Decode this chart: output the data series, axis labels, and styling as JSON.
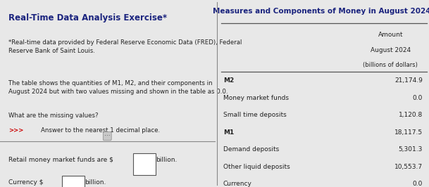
{
  "left_title": "Real-Time Data Analysis Exercise*",
  "left_subtitle": "*Real-time data provided by Federal Reserve Economic Data (FRED), Federal\nReserve Bank of Saint Louis.",
  "left_body": "The table shows the quantities of M1, M2, and their components in\nAugust 2024 but with two values missing and shown in the table as 0.0.",
  "left_question": "What are the missing values?",
  "left_arrow": ">>>",
  "left_answer_hint": "Answer to the nearest 1 decimal place.",
  "left_answer1": "Retail money market funds are $",
  "left_answer2": "billion.",
  "left_answer3": "Currency $",
  "left_answer4": "billion.",
  "right_title": "Measures and Components of Money in August 2024",
  "col_header1": "Amount",
  "col_header2": "August 2024",
  "col_header3": "(billions of dollars)",
  "rows": [
    {
      "label": "M2",
      "value": "21,174.9",
      "bold": true
    },
    {
      "label": "Money market funds",
      "value": "0.0",
      "bold": false
    },
    {
      "label": "Small time deposits",
      "value": "1,120.8",
      "bold": false
    },
    {
      "label": "M1",
      "value": "18,117.5",
      "bold": true
    },
    {
      "label": "Demand deposits",
      "value": "5,301.3",
      "bold": false
    },
    {
      "label": "Other liquid deposits",
      "value": "10,553.7",
      "bold": false
    },
    {
      "label": "Currency",
      "value": "0.0",
      "bold": false
    }
  ],
  "bg_color_left": "#e8e8e8",
  "bg_color_right": "#d8d8d8",
  "title_color": "#1a237e",
  "divider_color": "#888888",
  "text_color_normal": "#222222",
  "arrow_color": "#cc0000",
  "line_color": "#555555"
}
